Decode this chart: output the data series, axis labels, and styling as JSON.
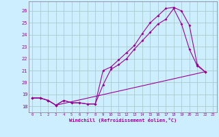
{
  "xlabel": "Windchill (Refroidissement éolien,°C)",
  "bg_color": "#cceeff",
  "grid_color": "#aacccc",
  "line_color": "#990099",
  "xlim": [
    -0.5,
    23.5
  ],
  "ylim": [
    17.5,
    26.8
  ],
  "yticks": [
    18,
    19,
    20,
    21,
    22,
    23,
    24,
    25,
    26
  ],
  "xticks": [
    0,
    1,
    2,
    3,
    4,
    5,
    6,
    7,
    8,
    9,
    10,
    11,
    12,
    13,
    14,
    15,
    16,
    17,
    18,
    19,
    20,
    21,
    22,
    23
  ],
  "series": [
    {
      "x": [
        0,
        1,
        2,
        3,
        22
      ],
      "y": [
        18.7,
        18.7,
        18.5,
        18.1,
        20.9
      ]
    },
    {
      "x": [
        0,
        1,
        2,
        3,
        4,
        5,
        6,
        7,
        8,
        9,
        10,
        11,
        12,
        13,
        14,
        15,
        16,
        17,
        18,
        19,
        20,
        21,
        22
      ],
      "y": [
        18.7,
        18.7,
        18.5,
        18.1,
        18.5,
        18.3,
        18.3,
        18.2,
        18.2,
        19.8,
        21.1,
        21.5,
        22.0,
        22.8,
        23.5,
        24.2,
        24.9,
        25.3,
        26.2,
        24.9,
        22.8,
        21.4,
        20.9
      ]
    },
    {
      "x": [
        0,
        1,
        2,
        3,
        4,
        5,
        6,
        7,
        8,
        9,
        10,
        11,
        12,
        13,
        14,
        15,
        16,
        17,
        18,
        19,
        20,
        21,
        22
      ],
      "y": [
        18.7,
        18.7,
        18.5,
        18.1,
        18.5,
        18.3,
        18.3,
        18.2,
        18.2,
        21.0,
        21.3,
        21.9,
        22.5,
        23.1,
        24.1,
        25.0,
        25.6,
        26.2,
        26.3,
        26.0,
        24.8,
        21.5,
        20.9
      ]
    }
  ]
}
